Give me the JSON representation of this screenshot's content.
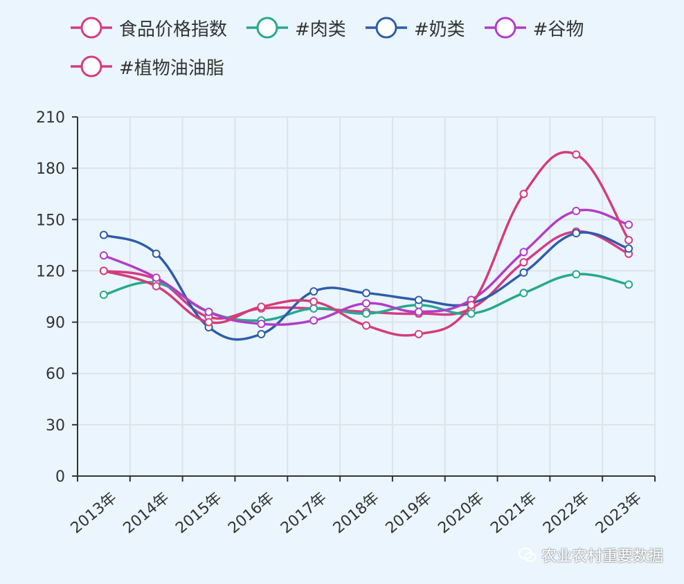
{
  "chart_data": {
    "type": "line",
    "categories": [
      "2013年",
      "2014年",
      "2015年",
      "2016年",
      "2017年",
      "2018年",
      "2019年",
      "2020年",
      "2021年",
      "2022年",
      "2023年"
    ],
    "ylim": [
      0,
      210
    ],
    "yticks": [
      0,
      30,
      60,
      90,
      120,
      150,
      180,
      210
    ],
    "grid": true,
    "legend_position": "top",
    "series": [
      {
        "name": "食品价格指数",
        "color": "#d63a84",
        "values": [
          120,
          115,
          93,
          98,
          98,
          96,
          95,
          98,
          125,
          143,
          130
        ]
      },
      {
        "name": "#肉类",
        "color": "#25a98e",
        "values": [
          106,
          113,
          96,
          91,
          98,
          95,
          100,
          95,
          107,
          118,
          112
        ]
      },
      {
        "name": "#奶类",
        "color": "#2e5ca8",
        "values": [
          141,
          130,
          87,
          83,
          108,
          107,
          103,
          101,
          119,
          142,
          133
        ]
      },
      {
        "name": "#谷物",
        "color": "#b23cc8",
        "values": [
          129,
          116,
          96,
          89,
          91,
          101,
          96,
          103,
          131,
          155,
          147
        ]
      },
      {
        "name": "#植物油油脂",
        "color": "#d43c7a",
        "values": [
          120,
          111,
          90,
          99,
          102,
          88,
          83,
          100,
          165,
          188,
          138
        ]
      }
    ]
  },
  "watermark": {
    "text": "农业农村重要数据"
  }
}
